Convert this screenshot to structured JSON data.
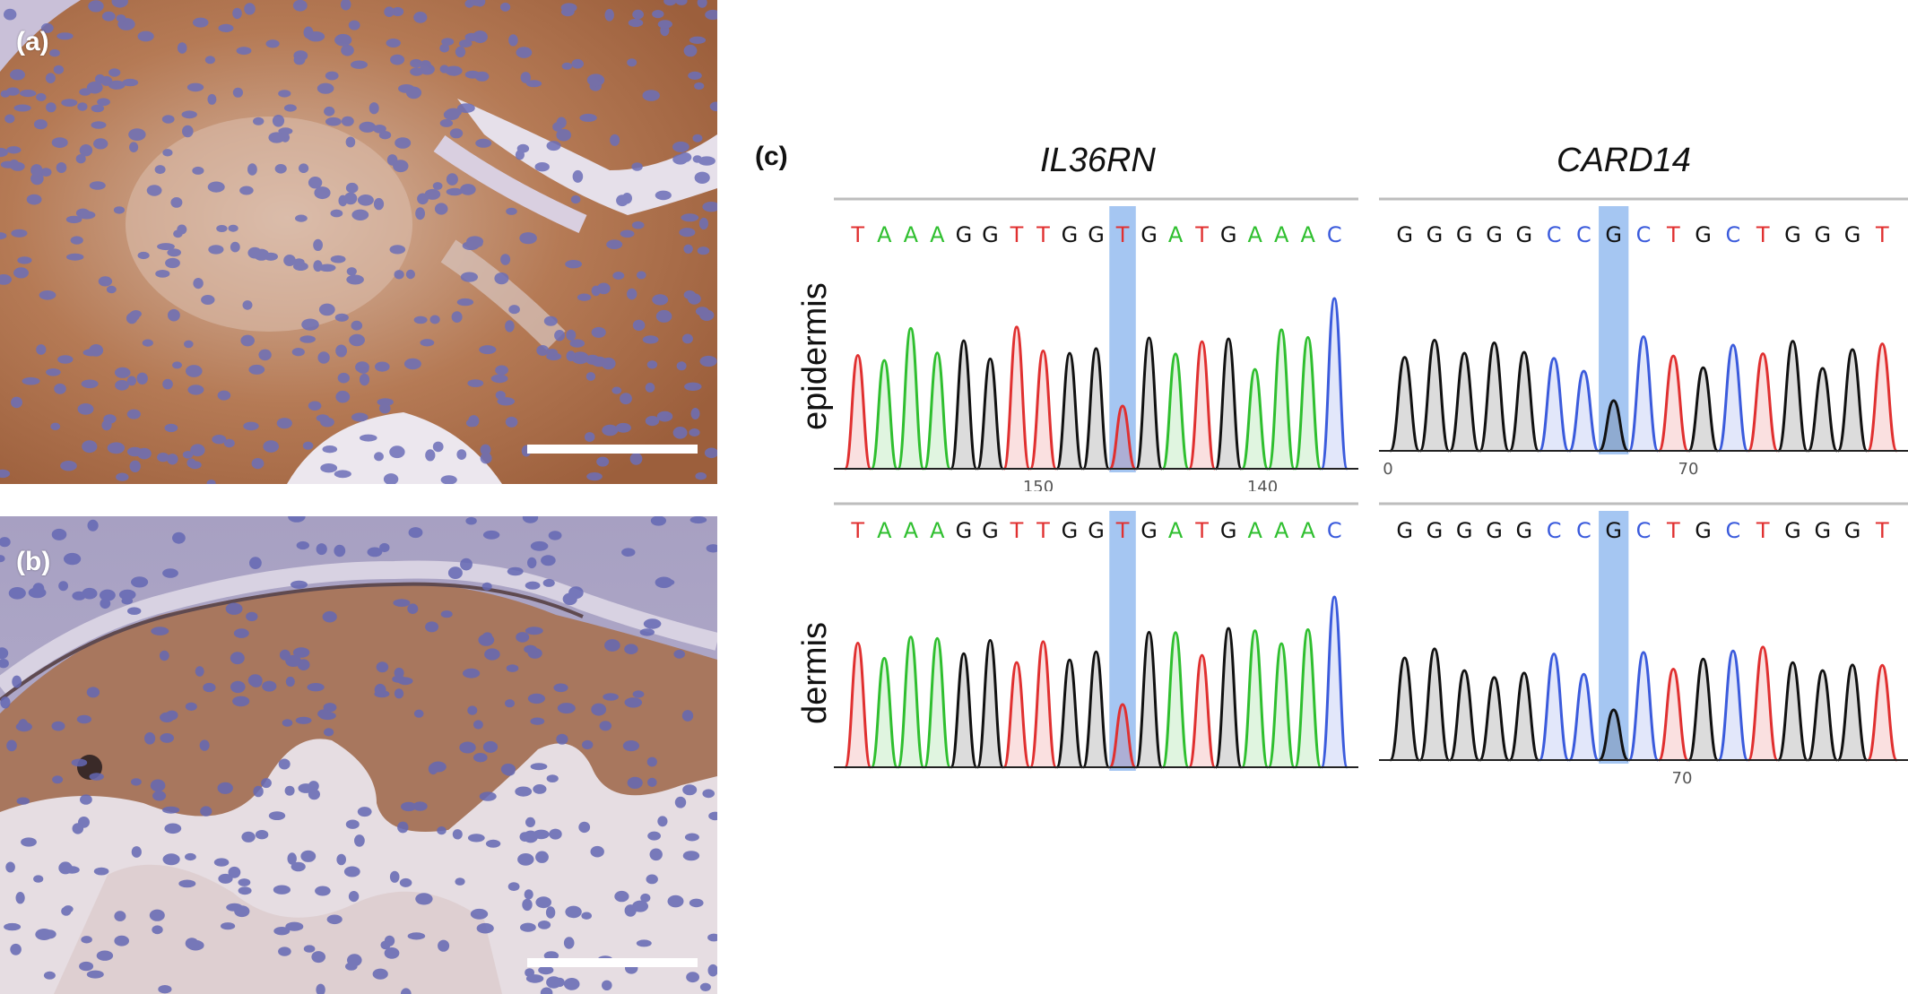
{
  "panel_a": {
    "label": "(a)"
  },
  "panel_b": {
    "label": "(b)"
  },
  "panel_c": {
    "label": "(c)",
    "genes": [
      {
        "name": "IL36RN",
        "epidermis": {
          "sequence": "TAAAGGTTGGTGATGAAAC",
          "highlight_index": 10,
          "axis_ticks": [
            "150",
            "140"
          ]
        },
        "dermis": {
          "sequence": "TAAAGGTTGGTGATGAAAC",
          "highlight_index": 10,
          "axis_ticks": []
        }
      },
      {
        "name": "CARD14",
        "epidermis": {
          "sequence": "GGGGGCCGCTGCTGGGT",
          "highlight_index": 7,
          "axis_ticks": [
            "0",
            "70"
          ]
        },
        "dermis": {
          "sequence": "GGGGGCCGCTGCTGGGT",
          "highlight_index": 7,
          "axis_ticks": [
            "70"
          ]
        }
      }
    ],
    "rows": [
      "epidermis",
      "dermis"
    ]
  },
  "colors": {
    "A": "#2fbf2f",
    "C": "#3b5bdc",
    "G": "#111111",
    "T": "#e03030",
    "highlight": "#8fb8ef"
  }
}
